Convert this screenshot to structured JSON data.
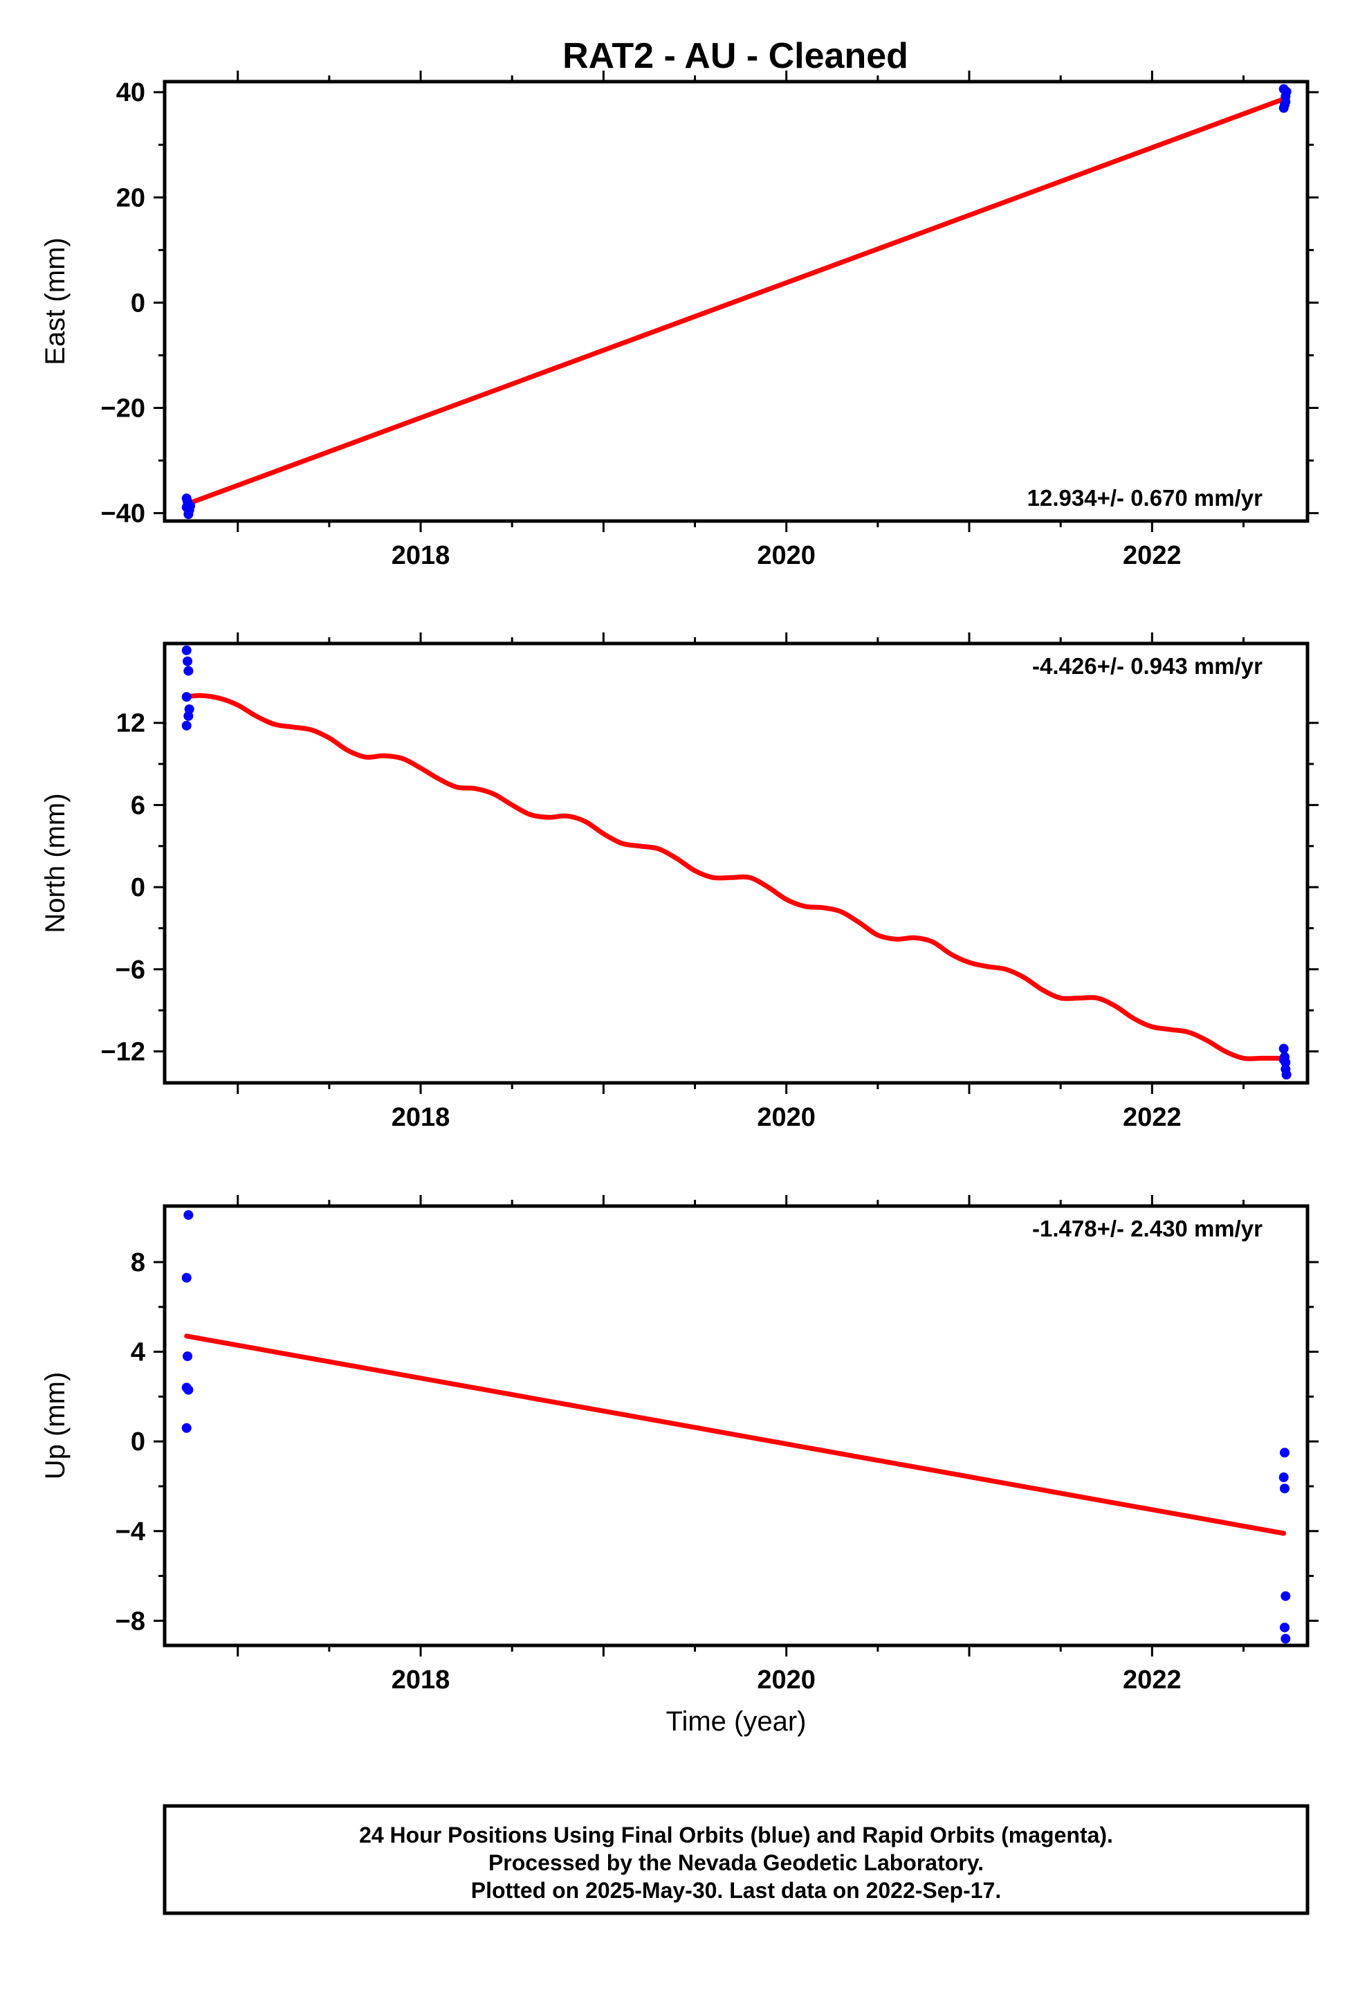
{
  "title": "RAT2  - AU - Cleaned",
  "colors": {
    "data": "#0000ff",
    "fit": "#ff0000",
    "frame": "#000000"
  },
  "chart_data": [
    {
      "type": "scatter",
      "name": "east",
      "ylabel": "East (mm)",
      "xlabel": "",
      "xlim": [
        2016.6,
        2022.85
      ],
      "ylim": [
        -41.5,
        42
      ],
      "yticks": [
        -40,
        -20,
        0,
        20,
        40
      ],
      "ytick_labels": [
        "−40",
        "−20",
        "0",
        "20",
        "40"
      ],
      "xticks": [
        2018,
        2020,
        2022
      ],
      "xtick_labels": [
        "2018",
        "2020",
        "2022"
      ],
      "rate_label": "12.934+/- 0.670 mm/yr",
      "rate_position": "bottom-right",
      "points": {
        "x": [
          2016.72,
          2016.725,
          2016.73,
          2016.72,
          2016.735,
          2016.73,
          2016.74,
          2022.72,
          2022.725,
          2022.73,
          2022.73,
          2022.735,
          2022.72
        ],
        "y": [
          -37.2,
          -37.8,
          -38.3,
          -38.9,
          -39.4,
          -40.2,
          -38.6,
          37.0,
          37.6,
          38.2,
          39.2,
          40.1,
          40.6
        ]
      },
      "fit": {
        "x": [
          2016.72,
          2022.72
        ],
        "y": [
          -38.3,
          38.7
        ]
      }
    },
    {
      "type": "scatter",
      "name": "north",
      "ylabel": "North (mm)",
      "xlabel": "",
      "xlim": [
        2016.6,
        2022.85
      ],
      "ylim": [
        -14.3,
        17.8
      ],
      "yticks": [
        -12,
        -6,
        0,
        6,
        12
      ],
      "ytick_labels": [
        "−12",
        "−6",
        "0",
        "6",
        "12"
      ],
      "xticks": [
        2018,
        2020,
        2022
      ],
      "xtick_labels": [
        "2018",
        "2020",
        "2022"
      ],
      "rate_label": "-4.426+/- 0.943 mm/yr",
      "rate_position": "top-right",
      "points": {
        "x": [
          2016.72,
          2016.725,
          2016.73,
          2016.72,
          2016.735,
          2016.73,
          2016.72,
          2022.72,
          2022.725,
          2022.73,
          2022.73,
          2022.735,
          2022.72
        ],
        "y": [
          17.3,
          16.5,
          15.8,
          13.9,
          13.0,
          12.5,
          11.8,
          -11.8,
          -12.4,
          -12.8,
          -13.3,
          -13.7,
          -12.6
        ],
        "note": ""
      },
      "fit": {
        "x": [
          2016.72,
          2016.8,
          2016.9,
          2017.0,
          2017.1,
          2017.2,
          2017.3,
          2017.4,
          2017.5,
          2017.6,
          2017.7,
          2017.8,
          2017.9,
          2018.0,
          2018.1,
          2018.2,
          2018.3,
          2018.4,
          2018.5,
          2018.6,
          2018.7,
          2018.8,
          2018.9,
          2019.0,
          2019.1,
          2019.2,
          2019.3,
          2019.4,
          2019.5,
          2019.6,
          2019.7,
          2019.8,
          2019.9,
          2020.0,
          2020.1,
          2020.2,
          2020.3,
          2020.4,
          2020.5,
          2020.6,
          2020.7,
          2020.8,
          2020.9,
          2021.0,
          2021.1,
          2021.2,
          2021.3,
          2021.4,
          2021.5,
          2021.6,
          2021.7,
          2021.8,
          2021.9,
          2022.0,
          2022.1,
          2022.2,
          2022.3,
          2022.4,
          2022.5,
          2022.6,
          2022.72
        ],
        "y": [
          13.9,
          14.0,
          13.8,
          13.3,
          12.5,
          11.9,
          11.7,
          11.5,
          10.9,
          10.0,
          9.5,
          9.6,
          9.4,
          8.7,
          7.9,
          7.3,
          7.2,
          6.8,
          6.0,
          5.3,
          5.1,
          5.2,
          4.8,
          3.9,
          3.2,
          3.0,
          2.8,
          2.1,
          1.2,
          0.7,
          0.7,
          0.7,
          0.0,
          -0.9,
          -1.4,
          -1.5,
          -1.8,
          -2.6,
          -3.5,
          -3.8,
          -3.7,
          -4.0,
          -4.9,
          -5.5,
          -5.8,
          -6.0,
          -6.6,
          -7.5,
          -8.1,
          -8.1,
          -8.1,
          -8.7,
          -9.6,
          -10.2,
          -10.4,
          -10.6,
          -11.2,
          -12.0,
          -12.5,
          -12.5,
          -12.5
        ]
      }
    },
    {
      "type": "scatter",
      "name": "up",
      "ylabel": "Up (mm)",
      "xlabel": "Time (year)",
      "xlim": [
        2016.6,
        2022.85
      ],
      "ylim": [
        -9.1,
        10.5
      ],
      "yticks": [
        -8,
        -4,
        0,
        4,
        8
      ],
      "ytick_labels": [
        "−8",
        "−4",
        "0",
        "4",
        "8"
      ],
      "xticks": [
        2018,
        2020,
        2022
      ],
      "xtick_labels": [
        "2018",
        "2020",
        "2022"
      ],
      "rate_label": "-1.478+/- 2.430 mm/yr",
      "rate_position": "top-right",
      "points": {
        "x": [
          2016.73,
          2016.72,
          2016.725,
          2016.72,
          2016.73,
          2016.72,
          2022.725,
          2022.72,
          2022.725,
          2022.73,
          2022.725,
          2022.73
        ],
        "y": [
          10.1,
          7.3,
          3.8,
          2.4,
          2.3,
          0.6,
          -0.5,
          -1.6,
          -2.1,
          -6.9,
          -8.3,
          -8.8
        ]
      },
      "fit": {
        "x": [
          2016.72,
          2022.72
        ],
        "y": [
          4.7,
          -4.1
        ]
      }
    }
  ],
  "footer": {
    "lines": [
      "24 Hour Positions Using Final Orbits (blue) and Rapid Orbits (magenta).",
      "Processed by the Nevada Geodetic Laboratory.",
      "Plotted on 2025-May-30. Last data on 2022-Sep-17."
    ]
  }
}
